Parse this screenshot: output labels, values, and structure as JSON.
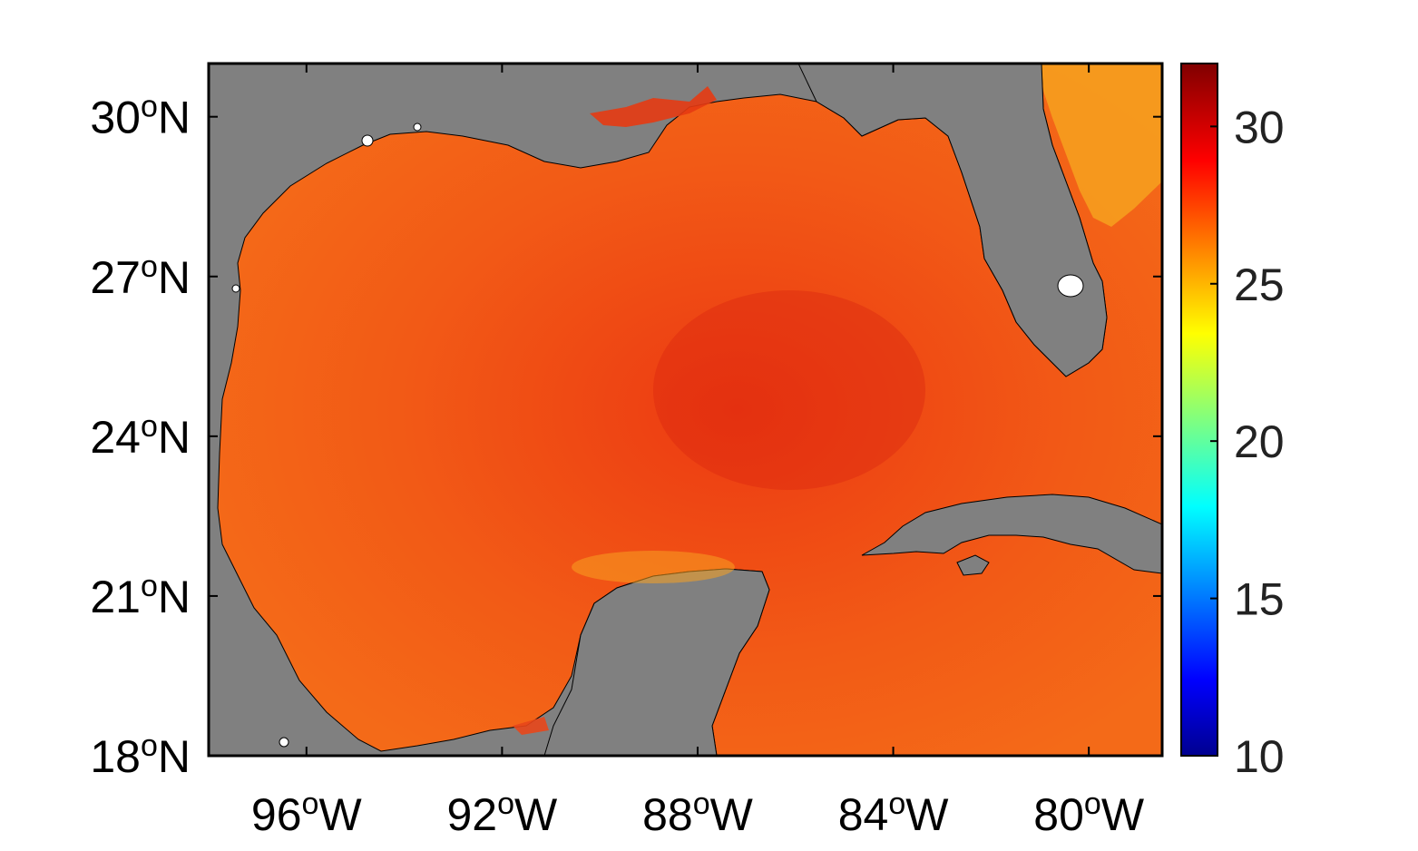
{
  "map": {
    "land_color": "#808080",
    "lat_ticks": [
      {
        "deg": "30",
        "hemi": "N",
        "value": 30
      },
      {
        "deg": "27",
        "hemi": "N",
        "value": 27
      },
      {
        "deg": "24",
        "hemi": "N",
        "value": 24
      },
      {
        "deg": "21",
        "hemi": "N",
        "value": 21
      },
      {
        "deg": "18",
        "hemi": "N",
        "value": 18
      }
    ],
    "lon_ticks": [
      {
        "deg": "96",
        "hemi": "W",
        "value": -96
      },
      {
        "deg": "92",
        "hemi": "W",
        "value": -92
      },
      {
        "deg": "88",
        "hemi": "W",
        "value": -88
      },
      {
        "deg": "84",
        "hemi": "W",
        "value": -84
      },
      {
        "deg": "80",
        "hemi": "W",
        "value": -80
      }
    ],
    "degree_symbol": "o"
  },
  "colorbar": {
    "ticks": [
      "30",
      "25",
      "20",
      "15",
      "10"
    ],
    "tick_values": [
      30,
      25,
      20,
      15,
      10
    ],
    "range": [
      10,
      32
    ],
    "colormap": "jet"
  }
}
